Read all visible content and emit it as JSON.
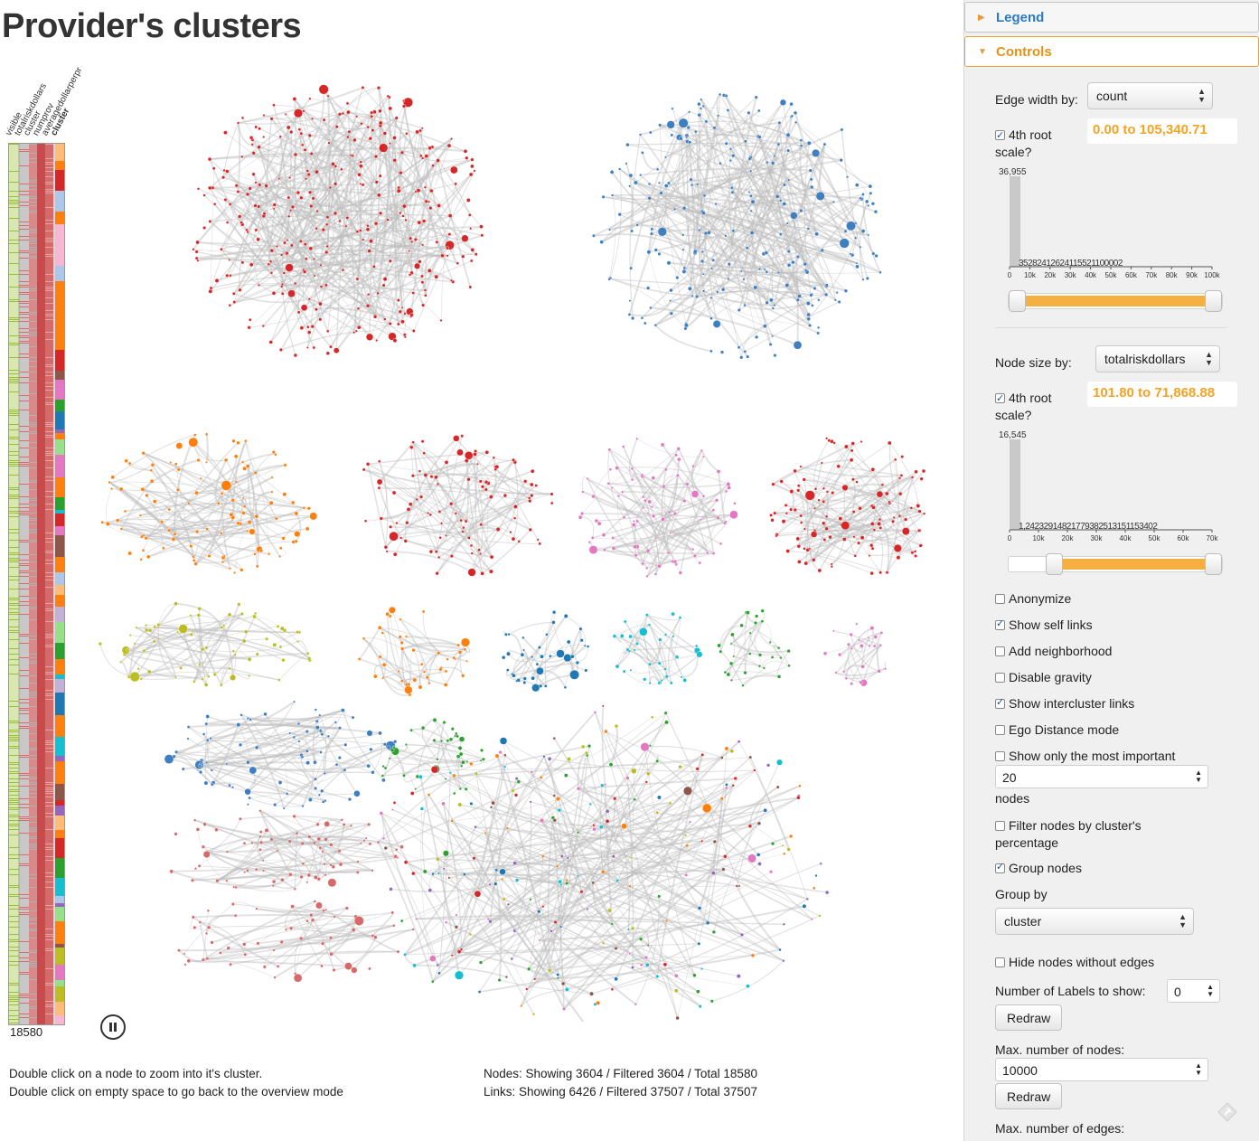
{
  "page": {
    "title": "Provider's clusters"
  },
  "minimap": {
    "columns": [
      "visible",
      "totalriskdollars",
      "cluster",
      "numprov",
      "averagedollarperpr",
      "cluster"
    ],
    "count": "18580"
  },
  "footer": {
    "help_line1": "Double click on a node to zoom into it's cluster.",
    "help_line2": "Double click on empty space to go back to the overview mode",
    "nodes_stats": "Nodes: Showing 3604 / Filtered 3604 / Total 18580",
    "links_stats": "Links: Showing 6426 / Filtered 37507 / Total 37507"
  },
  "panel": {
    "legend_label": "Legend",
    "controls_label": "Controls",
    "edge_width_label": "Edge width by:",
    "edge_width_value": "count",
    "edge_root_label_1": "4th root",
    "edge_root_label_2": "scale?",
    "edge_range": "0.00 to 105,340.71",
    "node_size_label": "Node size by:",
    "node_size_value": "totalriskdollars",
    "node_root_label_1": "4th root",
    "node_root_label_2": "scale?",
    "node_range": "101.80 to 71,868.88",
    "options": {
      "anonymize": "Anonymize",
      "show_self_links": "Show self links",
      "add_neighborhood": "Add neighborhood",
      "disable_gravity": "Disable gravity",
      "show_intercluster": "Show intercluster links",
      "ego_distance": "Ego Distance mode",
      "most_important": "Show only the most important",
      "most_important_value": "20",
      "nodes_word": "nodes",
      "filter_by_pct_1": "Filter nodes by cluster's",
      "filter_by_pct_2": "percentage",
      "group_nodes": "Group nodes",
      "hide_without_edges": "Hide nodes without edges"
    },
    "group_by_label": "Group by",
    "group_by_value": "cluster",
    "labels_to_show_label": "Number of Labels to show:",
    "labels_to_show_value": "0",
    "redraw_label": "Redraw",
    "max_nodes_label": "Max. number of nodes:",
    "max_nodes_value": "10000",
    "max_edges_label": "Max. number of edges:"
  },
  "edge_hist": {
    "max_label": "36,955",
    "bar_labels": [
      "352",
      "82",
      "41",
      "26",
      "24",
      "11",
      "5",
      "5",
      "2",
      "1",
      "1",
      "0",
      "0",
      "0",
      "0",
      "2"
    ],
    "tick_labels": [
      "0",
      "10k",
      "20k",
      "30k",
      "40k",
      "50k",
      "60k",
      "70k",
      "80k",
      "90k",
      "100k"
    ],
    "range_fraction": [
      0.0,
      1.0
    ]
  },
  "node_hist": {
    "max_label": "16,545",
    "bar_labels": [
      "1,242",
      "329",
      "148",
      "217",
      "79",
      "38",
      "25",
      "13",
      "15",
      "11",
      "5",
      "3",
      "4",
      "0",
      "2"
    ],
    "tick_labels": [
      "0",
      "10k",
      "20k",
      "30k",
      "40k",
      "50k",
      "60k",
      "70k"
    ],
    "range_fraction": [
      0.19,
      1.0
    ]
  },
  "colors": {
    "accent_orange": "#f5a324",
    "legend_blue": "#2a7bbf",
    "cluster_red": "#d62728",
    "cluster_blue": "#3f7fbf",
    "edge_gray": "#bbbbbb"
  }
}
